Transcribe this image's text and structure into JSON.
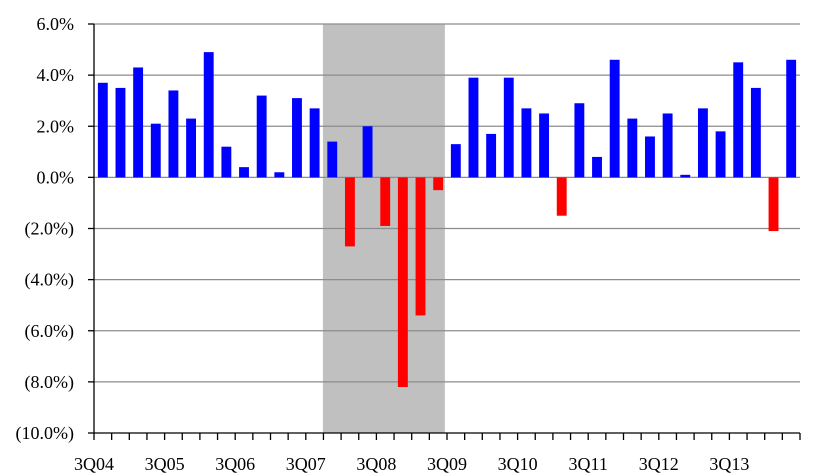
{
  "chart_data": {
    "type": "bar",
    "title": "",
    "xlabel": "",
    "ylabel": "",
    "ylim": [
      -10.0,
      6.0
    ],
    "y_ticks": [
      6.0,
      4.0,
      2.0,
      0.0,
      -2.0,
      -4.0,
      -6.0,
      -8.0,
      -10.0
    ],
    "y_tick_labels": [
      "6.0%",
      "4.0%",
      "2.0%",
      "0.0%",
      "(2.0%)",
      "(4.0%)",
      "(6.0%)",
      "(8.0%)",
      "(10.0%)"
    ],
    "x_tick_labels": [
      "3Q04",
      "3Q05",
      "3Q06",
      "3Q07",
      "3Q08",
      "3Q09",
      "3Q10",
      "3Q11",
      "3Q12",
      "3Q13"
    ],
    "grid": true,
    "legend": "none",
    "colors": {
      "positive": "#0000ff",
      "negative": "#ff0000",
      "recession": "#c0c0c0"
    },
    "recession_shading": {
      "from": "4Q07",
      "to": "2Q09"
    },
    "categories": [
      "3Q04",
      "4Q04",
      "1Q05",
      "2Q05",
      "3Q05",
      "4Q05",
      "1Q06",
      "2Q06",
      "3Q06",
      "4Q06",
      "1Q07",
      "2Q07",
      "3Q07",
      "4Q07",
      "1Q08",
      "2Q08",
      "3Q08",
      "4Q08",
      "1Q09",
      "2Q09",
      "3Q09",
      "4Q09",
      "1Q10",
      "2Q10",
      "3Q10",
      "4Q10",
      "1Q11",
      "2Q11",
      "3Q11",
      "4Q11",
      "1Q12",
      "2Q12",
      "3Q12",
      "4Q12",
      "1Q13",
      "2Q13",
      "3Q13",
      "4Q13",
      "1Q14",
      "2Q14"
    ],
    "values": [
      3.7,
      3.5,
      4.3,
      2.1,
      3.4,
      2.3,
      4.9,
      1.2,
      0.4,
      3.2,
      0.2,
      3.1,
      2.7,
      1.4,
      -2.7,
      2.0,
      -1.9,
      -8.2,
      -5.4,
      -0.5,
      1.3,
      3.9,
      1.7,
      3.9,
      2.7,
      2.5,
      -1.5,
      2.9,
      0.8,
      4.6,
      2.3,
      1.6,
      2.5,
      0.1,
      2.7,
      1.8,
      4.5,
      3.5,
      -2.1,
      4.6
    ]
  }
}
